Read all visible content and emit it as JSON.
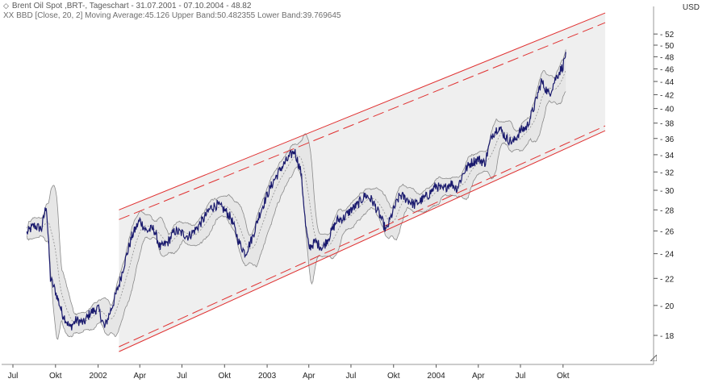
{
  "header": {
    "line1": "Brent Oil Spot ,BRT-, Tageschart - 31.07.2001 - 07.10.2004 - 48.82",
    "line2": "XX BBD [Close, 20, 2] Moving Average:45.126 Upper Band:50.482355 Lower Band:39.769645",
    "icon_label": "XX",
    "unit": "USD"
  },
  "chart_data": {
    "type": "line",
    "title": "Brent Oil Spot ,BRT-, Tageschart - 31.07.2001 - 07.10.2004 - 48.82",
    "xlabel": "",
    "ylabel": "USD",
    "y_scale": "log",
    "ylim": [
      16.5,
      55
    ],
    "y_ticks": [
      18,
      20,
      22,
      24,
      26,
      28,
      30,
      32,
      34,
      36,
      38,
      40,
      42,
      44,
      46,
      48,
      50,
      52
    ],
    "x_ticks": [
      "Jul",
      "Okt",
      "2002",
      "Apr",
      "Jul",
      "Okt",
      "2003",
      "Apr",
      "Jul",
      "Okt",
      "2004",
      "Apr",
      "Jul",
      "Okt"
    ],
    "grid": false,
    "colors": {
      "price": "#1a1a6e",
      "band_fill": "#e6e6e6",
      "band_edge": "#8a8a8a",
      "moving_average": "#909090",
      "channel": "#e03030",
      "channel_fill": "#efefef"
    },
    "series": [
      {
        "name": "Brent Oil Spot",
        "dates": [
          "2001-07-31",
          "2001-08-15",
          "2001-09-01",
          "2001-09-11",
          "2001-09-20",
          "2001-10-01",
          "2001-10-15",
          "2001-11-01",
          "2001-11-15",
          "2001-12-01",
          "2001-12-15",
          "2002-01-01",
          "2002-01-15",
          "2002-02-01",
          "2002-02-15",
          "2002-03-01",
          "2002-03-15",
          "2002-04-01",
          "2002-04-15",
          "2002-05-01",
          "2002-05-15",
          "2002-06-01",
          "2002-06-15",
          "2002-07-01",
          "2002-07-15",
          "2002-08-01",
          "2002-08-15",
          "2002-09-01",
          "2002-09-15",
          "2002-10-01",
          "2002-10-15",
          "2002-11-01",
          "2002-11-15",
          "2002-12-01",
          "2002-12-15",
          "2003-01-01",
          "2003-01-15",
          "2003-02-01",
          "2003-02-15",
          "2003-03-01",
          "2003-03-15",
          "2003-03-25",
          "2003-04-01",
          "2003-04-15",
          "2003-05-01",
          "2003-05-15",
          "2003-06-01",
          "2003-06-15",
          "2003-07-01",
          "2003-07-15",
          "2003-08-01",
          "2003-08-15",
          "2003-09-01",
          "2003-09-15",
          "2003-10-01",
          "2003-10-15",
          "2003-11-01",
          "2003-11-15",
          "2003-12-01",
          "2003-12-15",
          "2004-01-01",
          "2004-01-15",
          "2004-02-01",
          "2004-02-15",
          "2004-03-01",
          "2004-03-15",
          "2004-04-01",
          "2004-04-15",
          "2004-05-01",
          "2004-05-15",
          "2004-06-01",
          "2004-06-15",
          "2004-07-01",
          "2004-07-15",
          "2004-08-01",
          "2004-08-15",
          "2004-09-01",
          "2004-09-15",
          "2004-10-01",
          "2004-10-07"
        ],
        "values": [
          25.8,
          26.5,
          26.2,
          28.5,
          22.0,
          21.0,
          19.5,
          18.5,
          19.0,
          18.8,
          19.5,
          19.8,
          18.5,
          20.0,
          21.5,
          23.5,
          25.5,
          27.0,
          26.0,
          26.2,
          24.5,
          25.0,
          26.0,
          25.8,
          25.5,
          26.2,
          27.0,
          28.2,
          28.5,
          28.0,
          27.2,
          25.0,
          24.0,
          25.5,
          27.5,
          29.5,
          31.0,
          32.5,
          33.5,
          34.5,
          32.0,
          26.5,
          24.5,
          25.0,
          24.5,
          25.5,
          27.0,
          27.2,
          28.0,
          28.5,
          29.5,
          29.0,
          27.5,
          26.0,
          28.0,
          29.5,
          29.0,
          28.5,
          29.0,
          29.5,
          30.5,
          30.0,
          30.8,
          30.2,
          32.0,
          33.0,
          33.5,
          33.0,
          36.5,
          37.5,
          36.0,
          35.5,
          37.0,
          37.5,
          40.5,
          44.0,
          42.0,
          44.5,
          46.5,
          48.82
        ]
      }
    ],
    "bollinger": {
      "name": "XX BBD [Close, 20, 2]",
      "moving_average": 45.126,
      "upper_band": 50.482355,
      "lower_band": 39.769645
    },
    "trend_channel": {
      "start_date": "2002-02-15",
      "end_date": "2004-12-31",
      "upper_start": 28.0,
      "upper_end": 56.0,
      "lower_start": 17.0,
      "lower_end": 37.0
    }
  }
}
